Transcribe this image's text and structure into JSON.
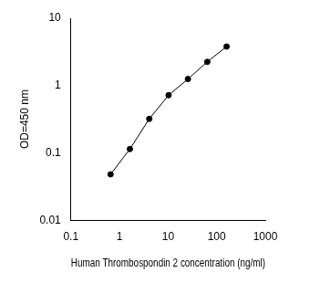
{
  "chart_data": {
    "type": "line",
    "x_label": "Human Thrombospondin 2 concentration (ng/ml)",
    "y_label": "OD=450 nm",
    "x": [
      0.655,
      1.638,
      4.096,
      10.24,
      25.6,
      64,
      160
    ],
    "values": [
      0.048,
      0.114,
      0.32,
      0.72,
      1.25,
      2.25,
      3.8
    ],
    "color": "#000000",
    "marker": "circle",
    "line_style": "solid",
    "log": true,
    "grid": false,
    "xlim": [
      0.1,
      1000
    ],
    "xticks": [
      0.1,
      1,
      10,
      100,
      1000
    ],
    "ylim": [
      0.01,
      10
    ],
    "yticks": [
      0.01,
      0.1,
      1,
      10
    ]
  }
}
